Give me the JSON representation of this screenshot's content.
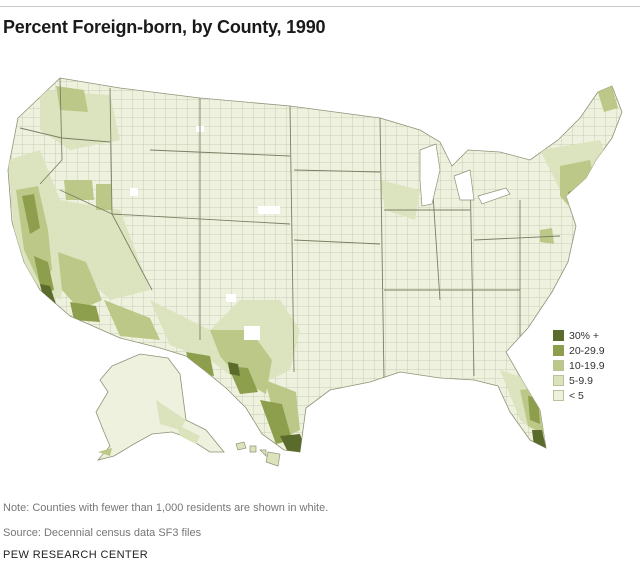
{
  "header": {
    "title": "Percent Foreign-born, by County, 1990"
  },
  "legend": {
    "items": [
      {
        "label": "30% +",
        "color": "#5a6b2c"
      },
      {
        "label": "20-29.9",
        "color": "#8d9f4c"
      },
      {
        "label": "10-19.9",
        "color": "#bcc888"
      },
      {
        "label": "5-9.9",
        "color": "#dbe3bd"
      },
      {
        "label": "< 5",
        "color": "#edf1de"
      }
    ]
  },
  "map": {
    "base_color": "#edf1de",
    "border_color": "#8f9377",
    "no_data_color": "#ffffff"
  },
  "footer": {
    "note": "Note: Counties with fewer than 1,000 residents are shown in white.",
    "source": "Source: Decennial census data SF3 files",
    "org": "PEW RESEARCH CENTER"
  }
}
